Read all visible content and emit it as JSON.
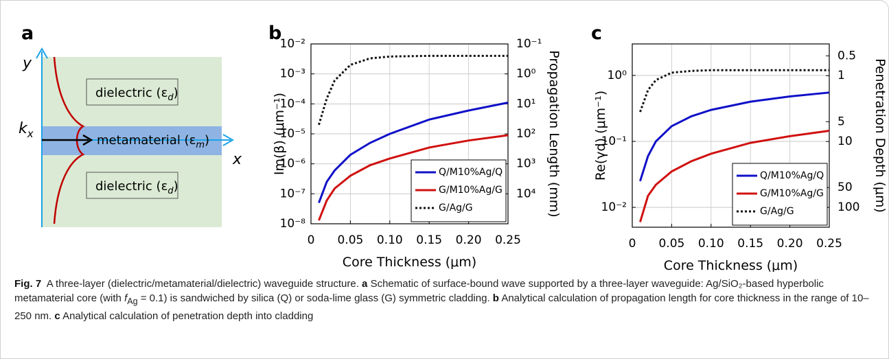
{
  "panel_a": {
    "letter": "a",
    "y_label": "y",
    "x_label": "x",
    "k_label": "k",
    "k_sub": "x",
    "dielectric_top": {
      "text": "dielectric (ε",
      "sub": "d",
      "close": ")"
    },
    "metamaterial": {
      "text": "metamaterial (ε",
      "sub": "m",
      "close": ")"
    },
    "dielectric_bottom": {
      "text": "dielectric (ε",
      "sub": "d",
      "close": ")"
    }
  },
  "chart_data": [
    {
      "type": "line",
      "letter": "b",
      "xlabel": "Core Thickness (μm)",
      "ylabel": "Im(β) (μm⁻¹)",
      "y2label": "Propagation Length (mm)",
      "x": [
        0.01,
        0.02,
        0.03,
        0.05,
        0.075,
        0.1,
        0.15,
        0.2,
        0.25
      ],
      "series": [
        {
          "name": "Q/M10%Ag/Q",
          "color": "#1010c8",
          "dash": "solid",
          "values": [
            5e-08,
            2.5e-07,
            6e-07,
            2e-06,
            5e-06,
            1e-05,
            3e-05,
            6e-05,
            0.00011
          ]
        },
        {
          "name": "G/M10%Ag/G",
          "color": "#d01010",
          "dash": "solid",
          "values": [
            1.3e-08,
            6e-08,
            1.5e-07,
            4e-07,
            9e-07,
            1.5e-06,
            3.5e-06,
            6e-06,
            9e-06
          ]
        },
        {
          "name": "G/Ag/G",
          "color": "#111111",
          "dash": "dotted",
          "values": [
            2e-05,
            0.00015,
            0.0006,
            0.002,
            0.0033,
            0.0038,
            0.004,
            0.004,
            0.004
          ]
        }
      ],
      "xlim": [
        0,
        0.25
      ],
      "xticks": [
        0,
        0.05,
        {
          "value": 0.1,
          "label": "0.10"
        },
        0.15,
        {
          "value": 0.2,
          "label": "0.20"
        },
        0.25
      ],
      "ylim": [
        1e-08,
        0.01
      ],
      "log_y": true,
      "yticks": [
        {
          "value": 1e-08,
          "label": "10⁻⁸"
        },
        {
          "value": 1e-07,
          "label": "10⁻⁷"
        },
        {
          "value": 1e-06,
          "label": "10⁻⁶"
        },
        {
          "value": 1e-05,
          "label": "10⁻⁵"
        },
        {
          "value": 0.0001,
          "label": "10⁻⁴"
        },
        {
          "value": 0.001,
          "label": "10⁻³"
        },
        {
          "value": 0.01,
          "label": "10⁻²"
        }
      ],
      "y2lim": [
        100000,
        0.1
      ],
      "log_y2": true,
      "y2ticks": [
        {
          "value": 0.1,
          "label": "10⁻¹"
        },
        {
          "value": 1,
          "label": "10⁰"
        },
        {
          "value": 10,
          "label": "10¹"
        },
        {
          "value": 100,
          "label": "10²"
        },
        {
          "value": 1000,
          "label": "10³"
        },
        {
          "value": 10000,
          "label": "10⁴"
        }
      ],
      "grid": true,
      "legend": "lower right"
    },
    {
      "type": "line",
      "letter": "c",
      "xlabel": "Core Thickness (μm)",
      "ylabel": "Re(γd) (μm⁻¹)",
      "y2label": "Penetration Depth (μm)",
      "x": [
        0.01,
        0.02,
        0.03,
        0.05,
        0.075,
        0.1,
        0.15,
        0.2,
        0.25
      ],
      "series": [
        {
          "name": "Q/M10%Ag/Q",
          "color": "#1010c8",
          "dash": "solid",
          "values": [
            0.025,
            0.06,
            0.1,
            0.17,
            0.24,
            0.3,
            0.4,
            0.48,
            0.55
          ]
        },
        {
          "name": "G/M10%Ag/G",
          "color": "#d01010",
          "dash": "solid",
          "values": [
            0.006,
            0.015,
            0.022,
            0.035,
            0.05,
            0.065,
            0.095,
            0.12,
            0.145
          ]
        },
        {
          "name": "G/Ag/G",
          "color": "#111111",
          "dash": "dotted",
          "values": [
            0.28,
            0.6,
            0.85,
            1.1,
            1.17,
            1.2,
            1.2,
            1.2,
            1.2
          ]
        }
      ],
      "xlim": [
        0,
        0.25
      ],
      "xticks": [
        0,
        0.05,
        {
          "value": 0.1,
          "label": "0.10"
        },
        0.15,
        {
          "value": 0.2,
          "label": "0.20"
        },
        0.25
      ],
      "ylim": [
        0.005,
        3
      ],
      "log_y": true,
      "yticks": [
        {
          "value": 0.01,
          "label": "10⁻²"
        },
        {
          "value": 0.1,
          "label": "10⁻¹"
        },
        {
          "value": 1,
          "label": "10⁰"
        }
      ],
      "y2lim": [
        200,
        0.33
      ],
      "log_y2": true,
      "y2ticks": [
        0.5,
        1,
        5,
        10,
        50,
        100
      ],
      "grid": true,
      "legend": "lower right"
    }
  ],
  "caption": {
    "label": "Fig. 7",
    "text": "A three-layer (dielectric/metamaterial/dielectric) waveguide structure.",
    "a": {
      "key": "a",
      "text": "Schematic of surface-bound wave supported by a three-layer waveguide: Ag/SiO₂-based hyperbolic metamaterial core (with",
      "var": "f",
      "var_sub": "Ag",
      "rest": "= 0.1) is sandwiched by silica (Q) or soda-lime glass (G) symmetric cladding."
    },
    "b": {
      "key": "b",
      "text": "Analytical calculation of propagation length for core thickness in the range of 10–250 nm."
    },
    "c": {
      "key": "c",
      "text": "Analytical calculation of penetration depth into cladding"
    }
  }
}
